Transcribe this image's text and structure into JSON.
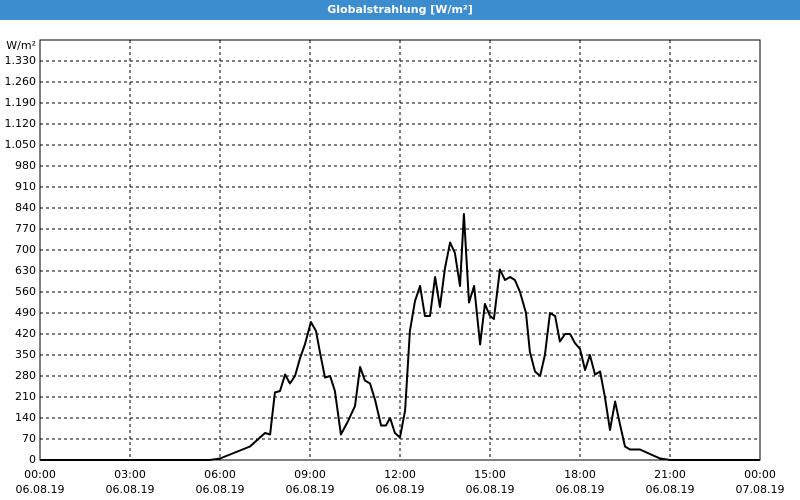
{
  "chart_data": {
    "type": "line",
    "title": "Globalstrahlung [W/m²]",
    "y_unit": "W/m²",
    "xlim": [
      0,
      24
    ],
    "ylim": [
      0,
      1400
    ],
    "grid": true,
    "xticks": [
      {
        "value": 0,
        "label": "00:00",
        "date": "06.08.19"
      },
      {
        "value": 3,
        "label": "03:00",
        "date": "06.08.19"
      },
      {
        "value": 6,
        "label": "06:00",
        "date": "06.08.19"
      },
      {
        "value": 9,
        "label": "09:00",
        "date": "06.08.19"
      },
      {
        "value": 12,
        "label": "12:00",
        "date": "06.08.19"
      },
      {
        "value": 15,
        "label": "15:00",
        "date": "06.08.19"
      },
      {
        "value": 18,
        "label": "18:00",
        "date": "06.08.19"
      },
      {
        "value": 21,
        "label": "21:00",
        "date": "06.08.19"
      },
      {
        "value": 24,
        "label": "00:00",
        "date": "07.08.19"
      }
    ],
    "yticks": [
      0,
      70,
      140,
      210,
      280,
      350,
      420,
      490,
      560,
      630,
      700,
      770,
      840,
      910,
      980,
      {
        "value": 1050,
        "label": "1.050"
      },
      {
        "value": 1120,
        "label": "1.120"
      },
      {
        "value": 1190,
        "label": "1.190"
      },
      {
        "value": 1260,
        "label": "1.260"
      },
      {
        "value": 1330,
        "label": "1.330"
      }
    ],
    "series": [
      {
        "name": "Globalstrahlung",
        "color": "#000000",
        "x": [
          0,
          5.67,
          6.0,
          7.0,
          7.5,
          7.67,
          7.83,
          8.0,
          8.17,
          8.33,
          8.5,
          8.67,
          8.83,
          9.03,
          9.2,
          9.33,
          9.5,
          9.67,
          9.83,
          10.03,
          10.27,
          10.5,
          10.67,
          10.83,
          11.0,
          11.17,
          11.37,
          11.53,
          11.67,
          11.83,
          12.0,
          12.17,
          12.33,
          12.5,
          12.67,
          12.83,
          13.0,
          13.17,
          13.33,
          13.5,
          13.67,
          13.83,
          14.0,
          14.13,
          14.3,
          14.47,
          14.67,
          14.83,
          15.0,
          15.13,
          15.33,
          15.5,
          15.67,
          15.83,
          16.0,
          16.2,
          16.33,
          16.5,
          16.67,
          16.83,
          17.0,
          17.17,
          17.33,
          17.5,
          17.67,
          17.83,
          18.0,
          18.17,
          18.33,
          18.5,
          18.67,
          18.83,
          19.0,
          19.17,
          19.33,
          19.5,
          19.67,
          20.0,
          20.33,
          20.67,
          21.0,
          24
        ],
        "values": [
          0,
          0,
          5,
          45,
          90,
          85,
          225,
          230,
          285,
          255,
          280,
          340,
          385,
          460,
          430,
          360,
          275,
          280,
          230,
          85,
          130,
          180,
          310,
          265,
          255,
          200,
          115,
          115,
          140,
          90,
          75,
          165,
          430,
          530,
          580,
          480,
          480,
          610,
          510,
          640,
          725,
          690,
          580,
          820,
          525,
          580,
          385,
          520,
          480,
          470,
          635,
          600,
          610,
          600,
          560,
          490,
          360,
          295,
          280,
          350,
          490,
          480,
          395,
          420,
          420,
          390,
          370,
          300,
          350,
          285,
          295,
          210,
          100,
          195,
          120,
          45,
          35,
          35,
          20,
          5,
          0,
          0
        ]
      }
    ]
  }
}
